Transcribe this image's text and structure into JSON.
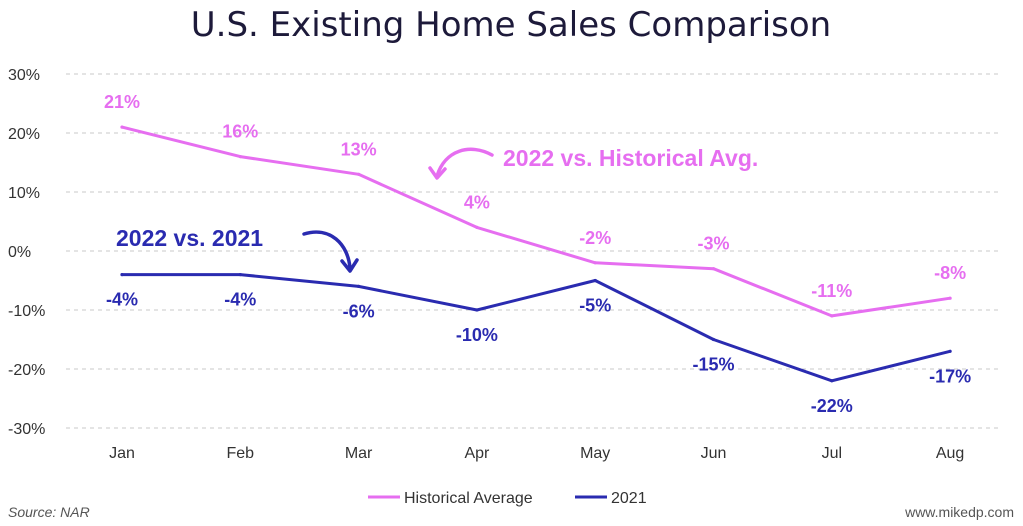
{
  "chart_data": {
    "type": "line",
    "title": "U.S. Existing Home Sales Comparison",
    "categories": [
      "Jan",
      "Feb",
      "Mar",
      "Apr",
      "May",
      "Jun",
      "Jul",
      "Aug"
    ],
    "ylim": [
      -30,
      30
    ],
    "yticks": [
      30,
      20,
      10,
      0,
      -10,
      -20,
      -30
    ],
    "ytick_labels": [
      "30%",
      "20%",
      "10%",
      "0%",
      "-10%",
      "-20%",
      "-30%"
    ],
    "grid": true,
    "series": [
      {
        "name": "Historical Average",
        "color": "#e66ef0",
        "values": [
          21,
          16,
          13,
          4,
          -2,
          -3,
          -11,
          -8
        ],
        "labels": [
          "21%",
          "16%",
          "13%",
          "4%",
          "-2%",
          "-3%",
          "-11%",
          "-8%"
        ]
      },
      {
        "name": "2021",
        "color": "#2a2bb0",
        "values": [
          -4,
          -4,
          -6,
          -10,
          -5,
          -15,
          -22,
          -17
        ],
        "labels": [
          "-4%",
          "-4%",
          "-6%",
          "-10%",
          "-5%",
          "-15%",
          "-22%",
          "-17%"
        ]
      }
    ],
    "annotations": {
      "historical": "2022 vs. Historical Avg.",
      "yoy": "2022 vs. 2021"
    },
    "legend": {
      "position": "bottom-center",
      "items": [
        "Historical Average",
        "2021"
      ]
    },
    "source": "Source: NAR",
    "credit": "www.mikedp.com"
  }
}
